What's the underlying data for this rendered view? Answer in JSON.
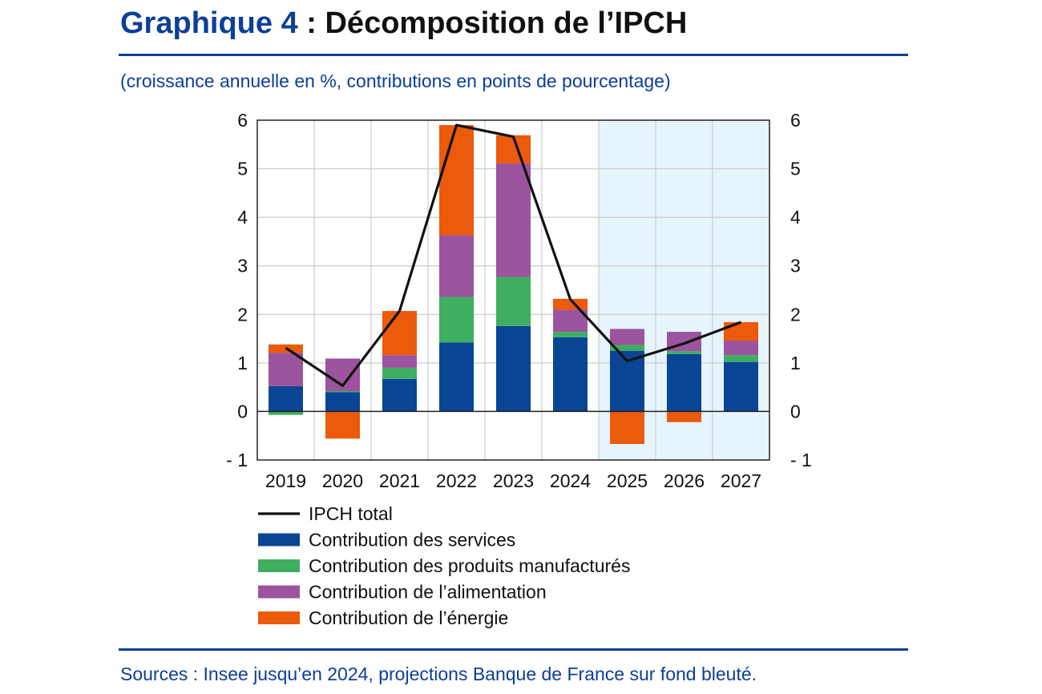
{
  "header": {
    "title_number": "Graphique 4",
    "title_text": " : Décomposition de l’IPCH",
    "subtitle": "(croissance annuelle en %, contributions en points de pourcentage)"
  },
  "footer": {
    "source": "Sources : Insee jusqu’en 2024, projections Banque de France sur fond bleuté."
  },
  "colors": {
    "services": "#0a4595",
    "manufactured": "#3eae60",
    "food": "#9b549d",
    "energy": "#ec5a0c",
    "total": "#111111",
    "projection_band": "#e6f4fc",
    "brand": "#0b3f99"
  },
  "chart_data": {
    "type": "bar",
    "stacked": true,
    "categories": [
      "2019",
      "2020",
      "2021",
      "2022",
      "2023",
      "2024",
      "2025",
      "2026",
      "2027"
    ],
    "ylim": [
      -1,
      6
    ],
    "yticks": [
      "- 1",
      "0",
      "1",
      "2",
      "3",
      "4",
      "5",
      "6"
    ],
    "grid": true,
    "projection_shaded_from": "2025",
    "series": [
      {
        "name": "Contribution des services",
        "key": "services",
        "values": [
          0.52,
          0.4,
          0.67,
          1.42,
          1.76,
          1.53,
          1.25,
          1.18,
          1.02
        ]
      },
      {
        "name": "Contribution des produits manufacturés",
        "key": "manufactured",
        "values": [
          -0.07,
          0.02,
          0.23,
          0.94,
          1.01,
          0.11,
          0.12,
          0.06,
          0.14
        ]
      },
      {
        "name": "Contribution de l’alimentation",
        "key": "food",
        "values": [
          0.69,
          0.67,
          0.26,
          1.27,
          2.34,
          0.46,
          0.33,
          0.4,
          0.3
        ]
      },
      {
        "name": "Contribution de l’énergie",
        "key": "energy",
        "values": [
          0.17,
          -0.56,
          0.91,
          2.27,
          0.58,
          0.22,
          -0.67,
          -0.22,
          0.38
        ]
      }
    ],
    "line": {
      "name": "IPCH total",
      "key": "total",
      "values": [
        1.31,
        0.53,
        2.07,
        5.9,
        5.66,
        2.31,
        1.04,
        1.4,
        1.84
      ]
    },
    "legend_position": "bottom-left"
  }
}
